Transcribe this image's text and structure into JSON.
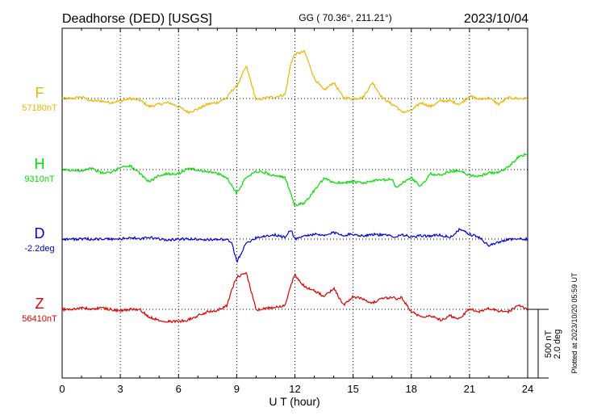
{
  "header": {
    "station": "Deadhorse (DED)  [USGS]",
    "coords": "GG ( 70.36°, 211.21°)",
    "date": "2023/10/04"
  },
  "plotted_note": "Plotted at 2023/10/20 05:59 UT",
  "scale_bar": {
    "line1": "500 nT",
    "line2": "2.0 deg"
  },
  "chart_data": {
    "type": "line",
    "title": "Deadhorse (DED)  [USGS]",
    "xlabel": "U T (hour)",
    "xlim": [
      0,
      24
    ],
    "x_ticks": [
      "0",
      "3",
      "6",
      "9",
      "12",
      "15",
      "18",
      "21",
      "24"
    ],
    "grid": true,
    "x": [
      0,
      0.5,
      1,
      1.5,
      2,
      2.5,
      3,
      3.5,
      4,
      4.5,
      5,
      5.5,
      6,
      6.5,
      7,
      7.5,
      8,
      8.5,
      8.75,
      9,
      9.5,
      10,
      10.5,
      11,
      11.5,
      11.8,
      12,
      12.5,
      13,
      13.5,
      14,
      14.5,
      15,
      15.5,
      16,
      16.5,
      17,
      17.25,
      17.5,
      18,
      18.5,
      19,
      19.5,
      20,
      20.5,
      21,
      21.5,
      22,
      22.5,
      23,
      23.5,
      24
    ],
    "series": [
      {
        "name": "F",
        "baseline": "57180nT",
        "color": "#f0b400",
        "values": [
          0,
          0,
          2,
          -3,
          -3,
          -5,
          -3,
          0,
          -2,
          -10,
          -7,
          -5,
          -10,
          -17,
          -13,
          -7,
          -5,
          1,
          10,
          15,
          40,
          -2,
          1,
          2,
          5,
          45,
          55,
          58,
          25,
          10,
          20,
          1,
          0,
          1,
          20,
          1,
          -7,
          -10,
          -17,
          -15,
          -5,
          -10,
          -3,
          -3,
          -7,
          3,
          -1,
          1,
          -7,
          1,
          0,
          0
        ]
      },
      {
        "name": "H",
        "baseline": "9310nT",
        "color": "#00e000",
        "values": [
          0,
          -1,
          -1,
          2,
          -4,
          -4,
          3,
          5,
          -5,
          -15,
          -7,
          -5,
          -5,
          2,
          -1,
          -2,
          -5,
          -10,
          -20,
          -29,
          -9,
          -2,
          -4,
          -8,
          -10,
          -30,
          -45,
          -41,
          -26,
          -11,
          -16,
          -16,
          -15,
          -17,
          -14,
          -13,
          -12,
          -23,
          -17,
          -10,
          -21,
          -5,
          -7,
          -2,
          -2,
          -7,
          -8,
          -4,
          -4,
          3,
          15,
          20
        ]
      },
      {
        "name": "D",
        "baseline": "-2.2deg",
        "color": "#0000e0",
        "values": [
          0,
          0,
          0,
          0,
          0,
          0,
          0,
          2,
          0,
          2,
          0,
          -1,
          0,
          0,
          0,
          -1,
          0,
          -1,
          -5,
          -28,
          -5,
          2,
          4,
          5,
          2,
          12,
          0,
          4,
          6,
          4,
          8,
          5,
          6,
          4,
          6,
          5,
          4,
          3,
          6,
          2,
          4,
          4,
          5,
          2,
          12,
          6,
          2,
          -8,
          -4,
          0,
          0,
          0
        ]
      },
      {
        "name": "Z",
        "baseline": "56410nT",
        "color": "#e00000",
        "values": [
          0,
          0,
          2,
          0,
          2,
          0,
          -2,
          0,
          0,
          -10,
          -13,
          -15,
          -15,
          -13,
          -8,
          -3,
          -1,
          5,
          24,
          40,
          45,
          -1,
          1,
          3,
          5,
          30,
          43,
          28,
          23,
          16,
          26,
          5,
          16,
          13,
          8,
          13,
          15,
          13,
          15,
          -3,
          -9,
          -8,
          -13,
          -8,
          -12,
          1,
          -3,
          1,
          -2,
          -3,
          5,
          0
        ]
      }
    ]
  }
}
